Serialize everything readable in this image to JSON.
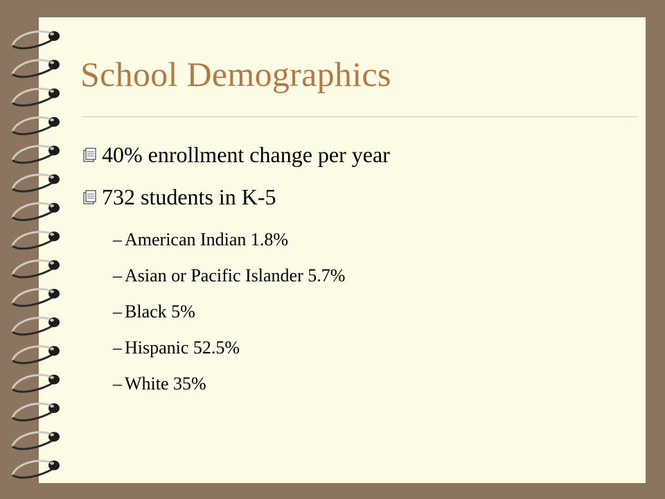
{
  "slide": {
    "title": "School Demographics",
    "bullets": [
      {
        "text": "40% enrollment change per year",
        "icon": "notepad-icon"
      },
      {
        "text": "732 students in K-5",
        "icon": "notepad-icon"
      }
    ],
    "sub_dash": "–",
    "sub_items": [
      "American Indian 1.8%",
      "Asian or Pacific Islander 5.7%",
      "Black 5%",
      "Hispanic 52.5%",
      "White 35%"
    ]
  },
  "colors": {
    "background": "#8b7560",
    "page": "#fcfbe5",
    "title": "#b57a43",
    "text": "#000000",
    "rule": "#d7c7a6"
  },
  "decoration": {
    "binding": "spiral-binding-icon",
    "ring_count": 16
  }
}
